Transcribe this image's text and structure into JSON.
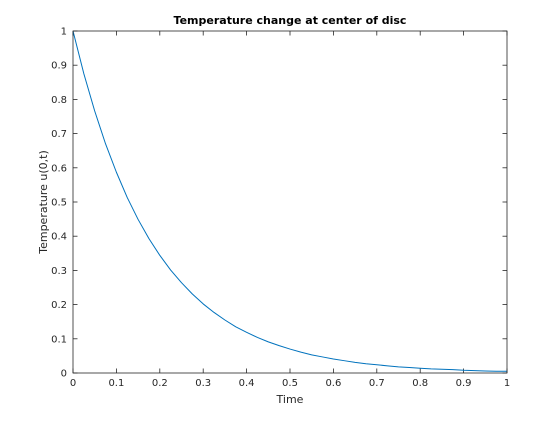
{
  "chart_data": {
    "type": "line",
    "title": "Temperature change at center of disc",
    "xlabel": "Time",
    "ylabel": "Temperature u(0,t)",
    "xlim": [
      0,
      1
    ],
    "ylim": [
      0,
      1
    ],
    "xticks": [
      0,
      0.1,
      0.2,
      0.3,
      0.4,
      0.5,
      0.6,
      0.7,
      0.8,
      0.9,
      1
    ],
    "xtick_labels": [
      "0",
      "0.1",
      "0.2",
      "0.3",
      "0.4",
      "0.5",
      "0.6",
      "0.7",
      "0.8",
      "0.9",
      "1"
    ],
    "yticks": [
      0,
      0.1,
      0.2,
      0.3,
      0.4,
      0.5,
      0.6,
      0.7,
      0.8,
      0.9,
      1
    ],
    "ytick_labels": [
      "0",
      "0.1",
      "0.2",
      "0.3",
      "0.4",
      "0.5",
      "0.6",
      "0.7",
      "0.8",
      "0.9",
      "1"
    ],
    "grid": false,
    "series": [
      {
        "color": "#0072bd",
        "x": [
          0,
          0.025,
          0.05,
          0.075,
          0.1,
          0.125,
          0.15,
          0.175,
          0.2,
          0.225,
          0.25,
          0.275,
          0.3,
          0.325,
          0.35,
          0.375,
          0.4,
          0.425,
          0.45,
          0.475,
          0.5,
          0.525,
          0.55,
          0.575,
          0.6,
          0.625,
          0.65,
          0.675,
          0.7,
          0.725,
          0.75,
          0.775,
          0.8,
          0.825,
          0.85,
          0.875,
          0.9,
          0.925,
          0.95,
          0.975,
          1
        ],
        "values": [
          1.0,
          0.875,
          0.766,
          0.67,
          0.587,
          0.513,
          0.449,
          0.393,
          0.344,
          0.301,
          0.264,
          0.231,
          0.202,
          0.177,
          0.155,
          0.135,
          0.119,
          0.104,
          0.091,
          0.08,
          0.07,
          0.061,
          0.053,
          0.047,
          0.041,
          0.036,
          0.031,
          0.027,
          0.024,
          0.021,
          0.018,
          0.016,
          0.014,
          0.012,
          0.011,
          0.01,
          0.008,
          0.007,
          0.006,
          0.005,
          0.005
        ]
      }
    ]
  }
}
